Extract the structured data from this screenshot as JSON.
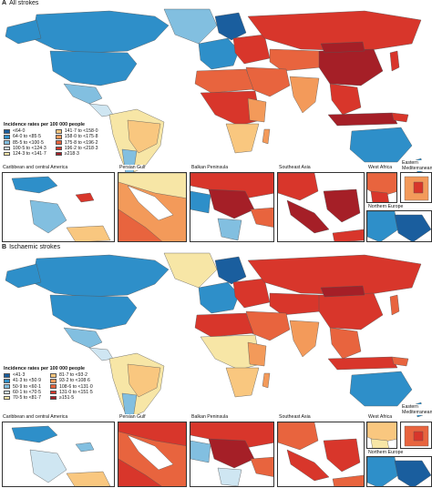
{
  "colors": {
    "ocean": "#ffffff",
    "border": "#555555",
    "bins": [
      "#1a5e9e",
      "#2e8fc9",
      "#82bfe0",
      "#cfe6f2",
      "#f7e6a6",
      "#f9c77f",
      "#f39a5a",
      "#e8643e",
      "#d8362b",
      "#a51f27"
    ]
  },
  "panelA": {
    "letter": "A",
    "title": "All strokes",
    "legend_title": "Incidence rates per 100 000 people",
    "legend_left": [
      "<64·0",
      "64·0 to <85·5",
      "85·5 to <100·5",
      "100·5 to <124·3",
      "124·3 to <141·7"
    ],
    "legend_right": [
      "141·7 to <158·0",
      "158·0 to <175·8",
      "175·8 to <196·2",
      "196·2 to <218·3",
      "≥218·3"
    ],
    "insets": [
      "Caribbean and central America",
      "Persian Gulf",
      "Balkan Peninsula",
      "Southeast Asia",
      "West Africa",
      "Eastern Mediterranean",
      "Northern Europe"
    ]
  },
  "panelB": {
    "letter": "B",
    "title": "Ischaemic strokes",
    "legend_title": "Incidence rates per 100 000 people",
    "legend_left": [
      "<41·3",
      "41·3 to <50·9",
      "50·9 to <60·1",
      "60·1 to <70·5",
      "70·5 to <81·7"
    ],
    "legend_right": [
      "81·7 to <93·2",
      "93·2 to <108·6",
      "108·6 to <131·0",
      "131·0 to <151·5",
      "≥151·5"
    ],
    "insets": [
      "Caribbean and central America",
      "Persian Gulf",
      "Balkan Peninsula",
      "Southeast Asia",
      "West Africa",
      "Eastern Mediterranean",
      "Northern Europe"
    ]
  }
}
